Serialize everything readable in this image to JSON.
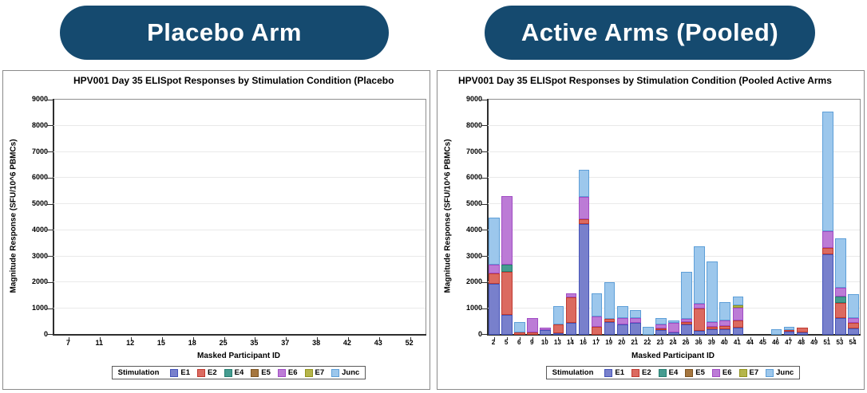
{
  "badges": {
    "left_label": "Placebo Arm",
    "right_label": "Active Arms (Pooled)",
    "fill_color": "#154A6F",
    "text_color": "#FFFFFF"
  },
  "stimulation_legend": {
    "title": "Stimulation",
    "items": [
      {
        "label": "E1",
        "fill": "#7880CC",
        "border": "#4453B8"
      },
      {
        "label": "E2",
        "fill": "#DB6A60",
        "border": "#C03A30"
      },
      {
        "label": "E4",
        "fill": "#459C90",
        "border": "#267F71"
      },
      {
        "label": "E5",
        "fill": "#A5763F",
        "border": "#7D5420"
      },
      {
        "label": "E6",
        "fill": "#BC7BD6",
        "border": "#A14CC4"
      },
      {
        "label": "E7",
        "fill": "#B5B54A",
        "border": "#93941F"
      },
      {
        "label": "Junc",
        "fill": "#9CC7EC",
        "border": "#5E9FD8"
      }
    ]
  },
  "chart_data": [
    {
      "type": "bar",
      "stacked": true,
      "title": "HPV001 Day 35 ELISpot Responses by Stimulation Condition (Placebo",
      "xlabel": "Masked Participant ID",
      "ylabel": "Magnitude Response (SFU/10^6 PBMCs)",
      "ylim": [
        0,
        9000
      ],
      "ytick_step": 1000,
      "grid": "horizontal",
      "legend_position": "bottom",
      "categories": [
        "7",
        "11",
        "12",
        "15",
        "18",
        "25",
        "35",
        "37",
        "38",
        "42",
        "43",
        "52"
      ],
      "series": [
        {
          "name": "E1",
          "values": [
            0,
            0,
            0,
            0,
            0,
            0,
            0,
            0,
            0,
            0,
            0,
            0
          ]
        },
        {
          "name": "E2",
          "values": [
            0,
            0,
            0,
            0,
            0,
            0,
            0,
            0,
            0,
            0,
            0,
            0
          ]
        },
        {
          "name": "E4",
          "values": [
            0,
            0,
            0,
            0,
            0,
            0,
            0,
            0,
            0,
            0,
            0,
            0
          ]
        },
        {
          "name": "E5",
          "values": [
            0,
            0,
            0,
            0,
            0,
            0,
            0,
            0,
            0,
            0,
            0,
            0
          ]
        },
        {
          "name": "E6",
          "values": [
            0,
            0,
            0,
            0,
            0,
            0,
            0,
            0,
            0,
            0,
            0,
            0
          ]
        },
        {
          "name": "E7",
          "values": [
            0,
            0,
            0,
            0,
            0,
            0,
            0,
            0,
            0,
            0,
            0,
            0
          ]
        },
        {
          "name": "Junc",
          "values": [
            0,
            0,
            0,
            0,
            0,
            0,
            0,
            0,
            0,
            0,
            0,
            0
          ]
        }
      ]
    },
    {
      "type": "bar",
      "stacked": true,
      "title": "HPV001 Day 35 ELISpot Responses by Stimulation Condition (Pooled Active Arms",
      "xlabel": "Masked Participant ID",
      "ylabel": "Magnitude Response (SFU/10^6 PBMCs)",
      "ylim": [
        0,
        9000
      ],
      "ytick_step": 1000,
      "grid": "horizontal",
      "legend_position": "bottom",
      "categories": [
        "2",
        "5",
        "6",
        "9",
        "10",
        "13",
        "14",
        "16",
        "17",
        "19",
        "20",
        "21",
        "22",
        "23",
        "24",
        "26",
        "36",
        "39",
        "40",
        "41",
        "44",
        "45",
        "46",
        "47",
        "48",
        "49",
        "51",
        "53",
        "54"
      ],
      "series": [
        {
          "name": "E1",
          "values": [
            1950,
            750,
            0,
            0,
            180,
            60,
            450,
            4250,
            0,
            500,
            400,
            450,
            0,
            180,
            100,
            400,
            150,
            200,
            200,
            270,
            0,
            0,
            0,
            130,
            80,
            0,
            3090,
            630,
            250
          ]
        },
        {
          "name": "E2",
          "values": [
            400,
            1650,
            100,
            100,
            0,
            350,
            970,
            180,
            300,
            100,
            0,
            0,
            0,
            60,
            0,
            80,
            850,
            100,
            150,
            280,
            0,
            0,
            0,
            50,
            185,
            0,
            240,
            590,
            200
          ]
        },
        {
          "name": "E4",
          "values": [
            0,
            300,
            0,
            0,
            0,
            0,
            0,
            0,
            0,
            0,
            0,
            0,
            0,
            0,
            0,
            0,
            0,
            0,
            0,
            0,
            0,
            0,
            0,
            0,
            0,
            0,
            0,
            260,
            0
          ]
        },
        {
          "name": "E5",
          "values": [
            0,
            0,
            0,
            0,
            0,
            0,
            0,
            0,
            0,
            0,
            0,
            0,
            0,
            0,
            0,
            0,
            0,
            0,
            0,
            0,
            0,
            0,
            0,
            0,
            0,
            0,
            0,
            0,
            0
          ]
        },
        {
          "name": "E6",
          "values": [
            350,
            2600,
            0,
            550,
            100,
            0,
            170,
            840,
            400,
            0,
            250,
            185,
            0,
            160,
            350,
            120,
            200,
            200,
            200,
            480,
            0,
            0,
            0,
            0,
            0,
            0,
            650,
            310,
            200
          ]
        },
        {
          "name": "E7",
          "values": [
            0,
            0,
            0,
            0,
            0,
            0,
            0,
            0,
            0,
            0,
            0,
            0,
            0,
            0,
            0,
            0,
            0,
            0,
            0,
            90,
            0,
            0,
            0,
            0,
            0,
            0,
            0,
            0,
            0
          ]
        },
        {
          "name": "Junc",
          "values": [
            1800,
            0,
            400,
            0,
            0,
            700,
            0,
            1050,
            900,
            1400,
            460,
            325,
            300,
            250,
            110,
            1800,
            2200,
            2300,
            700,
            330,
            0,
            0,
            200,
            125,
            0,
            0,
            4560,
            1910,
            900
          ]
        }
      ]
    }
  ]
}
